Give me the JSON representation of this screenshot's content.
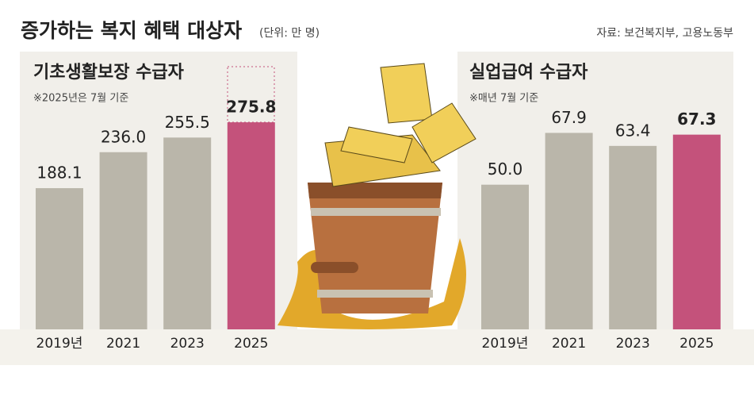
{
  "title": "증가하는 복지 혜택 대상자",
  "unit": "(단위: 만 명)",
  "source": "자료: 보건복지부, 고용노동부",
  "chart_data": [
    {
      "type": "bar",
      "title": "기초생활보장 수급자",
      "note": "※2025년은 7월 기준",
      "categories": [
        "2019년",
        "2021",
        "2023",
        "2025"
      ],
      "values": [
        188.1,
        236,
        255.5,
        275.8
      ],
      "value_labels": [
        "188.1",
        "236.0",
        "255.5",
        "275.8"
      ],
      "colors": [
        "#bab6aa",
        "#bab6aa",
        "#bab6aa",
        "#c4527b"
      ],
      "ylim": [
        0,
        370
      ]
    },
    {
      "type": "bar",
      "title": "실업급여 수급자",
      "note": "※매년 7월 기준",
      "categories": [
        "2019년",
        "2021",
        "2023",
        "2025"
      ],
      "values": [
        50,
        67.9,
        63.4,
        67.3
      ],
      "value_labels": [
        "50.0",
        "67.9",
        "63.4",
        "67.3"
      ],
      "colors": [
        "#bab6aa",
        "#bab6aa",
        "#bab6aa",
        "#c4527b"
      ],
      "ylim": [
        0,
        96
      ]
    }
  ]
}
